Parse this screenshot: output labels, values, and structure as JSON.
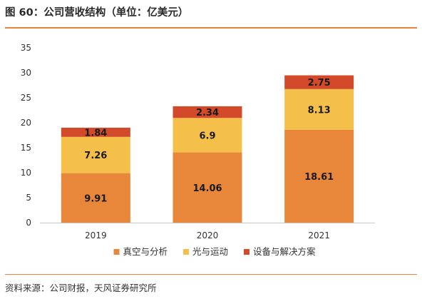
{
  "title": "图 60：公司营收结构（单位：亿美元）",
  "source": "资料来源：公司财报，天风证券研究所",
  "chart_data": {
    "type": "bar",
    "stacked": true,
    "categories": [
      "2019",
      "2020",
      "2021"
    ],
    "series": [
      {
        "name": "真空与分析",
        "color": "#e8873a",
        "values": [
          9.91,
          14.06,
          18.61
        ],
        "labels": [
          "9.91",
          "14.06",
          "18.61"
        ]
      },
      {
        "name": "光与运动",
        "color": "#f5c04a",
        "values": [
          7.26,
          6.9,
          8.13
        ],
        "labels": [
          "7.26",
          "6.9",
          "8.13"
        ]
      },
      {
        "name": "设备与解决方案",
        "color": "#d24a2a",
        "values": [
          1.84,
          2.34,
          2.75
        ],
        "labels": [
          "1.84",
          "2.34",
          "2.75"
        ]
      }
    ],
    "ylim": [
      0,
      35
    ],
    "yticks": [
      0,
      5,
      10,
      15,
      20,
      25,
      30,
      35
    ],
    "grid": false,
    "legend_position": "bottom"
  }
}
